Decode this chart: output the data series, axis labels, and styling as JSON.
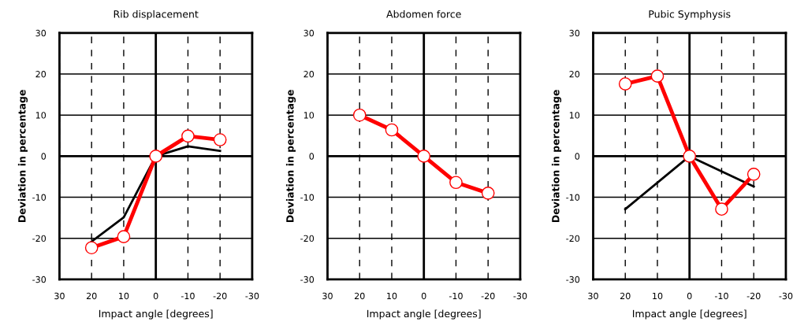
{
  "chart_data": [
    {
      "type": "line",
      "title": "Rib displacement",
      "xlabel": "Impact angle [degrees]",
      "ylabel": "Deviation in percentage",
      "x": [
        20,
        10,
        0,
        -10,
        -20
      ],
      "series": [
        {
          "color": "#000000",
          "values": [
            -20.8,
            -14.9,
            0,
            2.4,
            1.3
          ],
          "marker": "none"
        },
        {
          "color": "#ff0000",
          "values": [
            -22.3,
            -19.6,
            0,
            4.9,
            4.0
          ],
          "marker": "circle"
        }
      ],
      "xlim": [
        30,
        -30
      ],
      "ylim": [
        -30,
        30
      ],
      "xticks": [
        30,
        20,
        10,
        0,
        -10,
        -20,
        -30
      ],
      "yticks": [
        -30,
        -20,
        -10,
        0,
        10,
        20,
        30
      ],
      "grid": true
    },
    {
      "type": "line",
      "title": "Abdomen force",
      "xlabel": "Impact angle [degrees]",
      "ylabel": "Deviation in percentage",
      "x": [
        20,
        10,
        0,
        -10,
        -20
      ],
      "series": [
        {
          "color": "#ff0000",
          "values": [
            10,
            6.4,
            0,
            -6.4,
            -9
          ],
          "marker": "circle"
        }
      ],
      "xlim": [
        30,
        -30
      ],
      "ylim": [
        -30,
        30
      ],
      "xticks": [
        30,
        20,
        10,
        0,
        -10,
        -20,
        -30
      ],
      "yticks": [
        -30,
        -20,
        -10,
        0,
        10,
        20,
        30
      ],
      "grid": true
    },
    {
      "type": "line",
      "title": "Pubic Symphysis",
      "xlabel": "Impact angle [degrees]",
      "ylabel": "Deviation in percentage",
      "x": [
        20,
        10,
        0,
        -10,
        -20
      ],
      "series": [
        {
          "color": "#000000",
          "x": [
            20,
            0,
            -20
          ],
          "values": [
            -12.9,
            0,
            -7.4
          ],
          "marker": "none"
        },
        {
          "color": "#ff0000",
          "values": [
            17.6,
            19.5,
            0,
            -12.9,
            -4.4
          ],
          "marker": "circle"
        }
      ],
      "xlim": [
        30,
        -30
      ],
      "ylim": [
        -30,
        30
      ],
      "xticks": [
        30,
        20,
        10,
        0,
        -10,
        -20,
        -30
      ],
      "yticks": [
        -30,
        -20,
        -10,
        0,
        10,
        20,
        30
      ],
      "grid": true
    }
  ]
}
